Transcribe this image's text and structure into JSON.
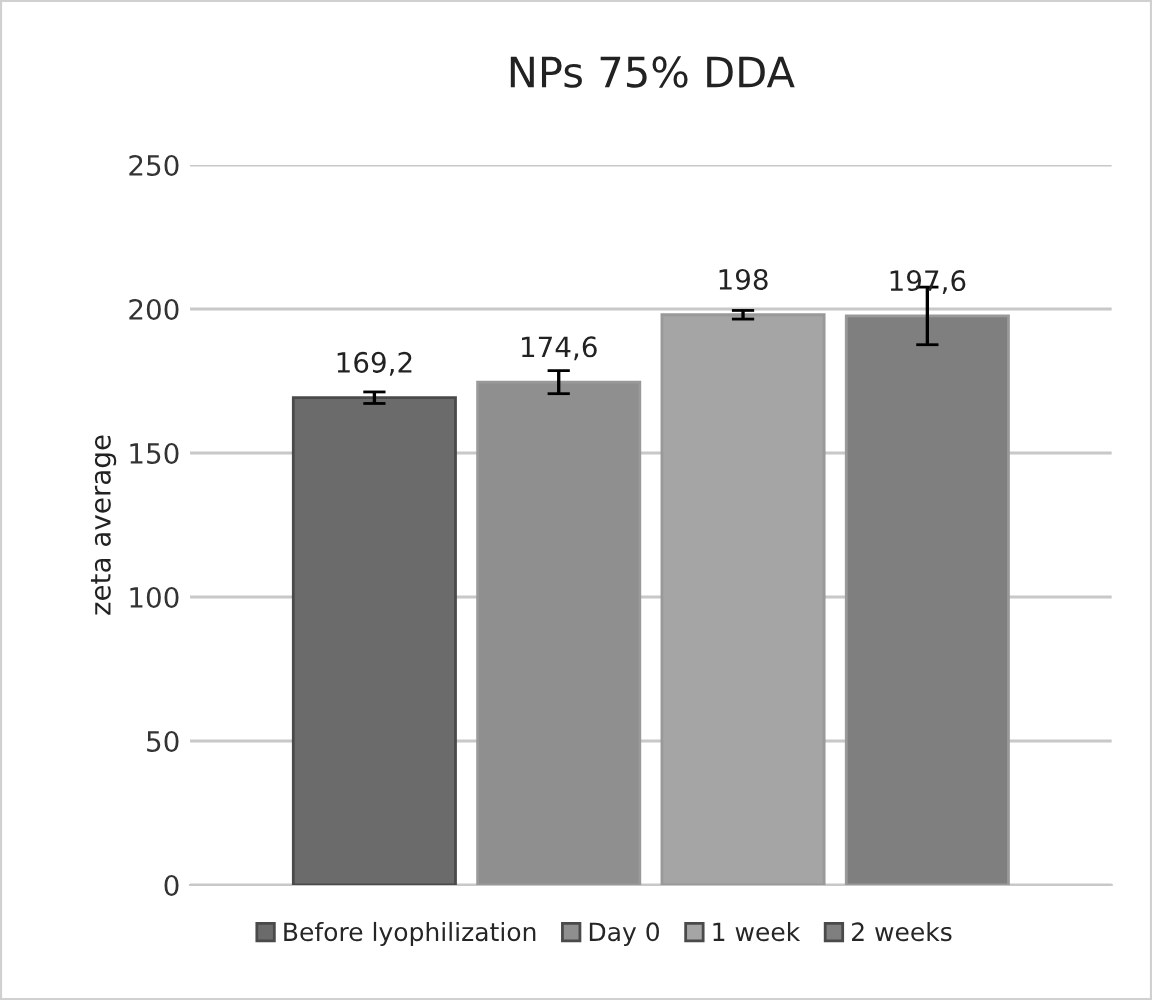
{
  "chart_data": {
    "type": "bar",
    "title": "NPs 75% DDA",
    "ylabel": "zeta average",
    "categories": [
      null
    ],
    "series": [
      {
        "name": "Before lyophilization",
        "color": "#6b6b6b",
        "values": [
          169.2
        ],
        "errors": [
          2
        ],
        "value_labels": [
          "169,2"
        ]
      },
      {
        "name": "Day 0",
        "color": "#8f8f8f",
        "values": [
          174.6
        ],
        "errors": [
          4
        ],
        "value_labels": [
          "174,6"
        ]
      },
      {
        "name": "1 week",
        "color": "#a5a5a5",
        "values": [
          198
        ],
        "errors": [
          1.5
        ],
        "value_labels": [
          "198"
        ]
      },
      {
        "name": "2 weeks",
        "color": "#7f7f7f",
        "values": [
          197.6
        ],
        "errors": [
          10
        ],
        "value_labels": [
          "197,6"
        ]
      }
    ],
    "ylim": [
      0,
      250
    ],
    "yticks": [
      0,
      50,
      100,
      150,
      200,
      250
    ],
    "grid": "y",
    "legend": "bottom"
  }
}
